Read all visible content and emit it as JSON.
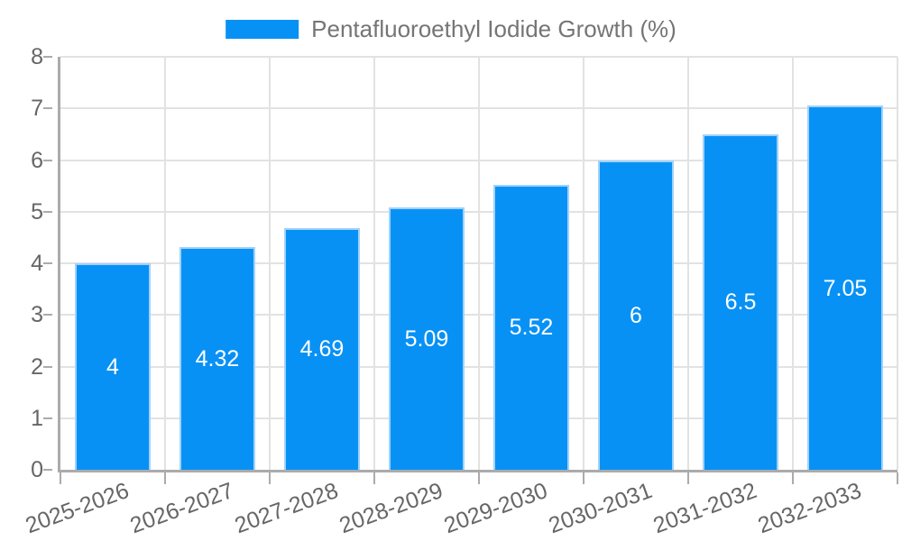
{
  "legend": {
    "label": "Pentafluoroethyl Iodide Growth (%)"
  },
  "chart_data": {
    "type": "bar",
    "title": "",
    "xlabel": "",
    "ylabel": "",
    "categories": [
      "2025-2026",
      "2026-2027",
      "2027-2028",
      "2028-2029",
      "2029-2030",
      "2030-2031",
      "2031-2032",
      "2032-2033"
    ],
    "series": [
      {
        "name": "Pentafluoroethyl Iodide Growth (%)",
        "values": [
          4,
          4.32,
          4.69,
          5.09,
          5.52,
          6,
          6.5,
          7.05
        ]
      }
    ],
    "bar_value_labels": [
      "4",
      "4.32",
      "4.69",
      "5.09",
      "5.52",
      "6",
      "6.5",
      "7.05"
    ],
    "ylim": [
      0,
      8
    ],
    "yticks": [
      0,
      1,
      2,
      3,
      4,
      5,
      6,
      7,
      8
    ],
    "grid": true,
    "legend_position": "top-center",
    "x_tick_rotation_deg": -20,
    "colors": {
      "bar": "#0891f5",
      "bar_border": "#a0d2fa",
      "bar_label": "#ffffff",
      "grid": "#e2e2e2",
      "axis": "#ababab",
      "tick_text": "#666666",
      "legend_text": "#757575",
      "background": "#ffffff"
    }
  }
}
